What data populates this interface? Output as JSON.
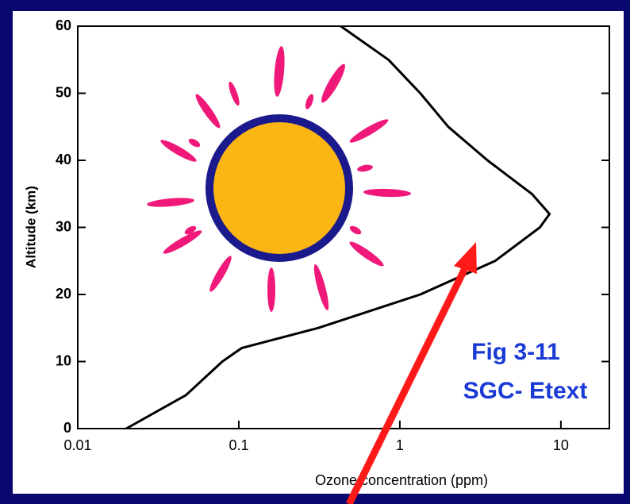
{
  "chart_data": {
    "type": "line",
    "xlabel": "Ozone concentration (ppm)",
    "ylabel": "Altitude (km)",
    "annotations": [
      "Fig 3-11",
      "SGC- Etext"
    ],
    "xscale": "log",
    "xlim": [
      0.01,
      20
    ],
    "xticks": [
      0.01,
      0.1,
      1,
      10
    ],
    "ylim": [
      0,
      60
    ],
    "yticks": [
      0,
      10,
      20,
      30,
      40,
      50,
      60
    ],
    "series": [
      {
        "color": "#000000",
        "x": [
          0.02,
          0.047,
          0.079,
          0.104,
          0.31,
          1.34,
          3.9,
          7.4,
          8.5,
          6.6,
          3.5,
          2.0,
          1.34,
          0.85,
          0.43
        ],
        "values": [
          0,
          5,
          10,
          12,
          15,
          20,
          25,
          30,
          32,
          35,
          40,
          45,
          50,
          55,
          60
        ]
      }
    ]
  }
}
